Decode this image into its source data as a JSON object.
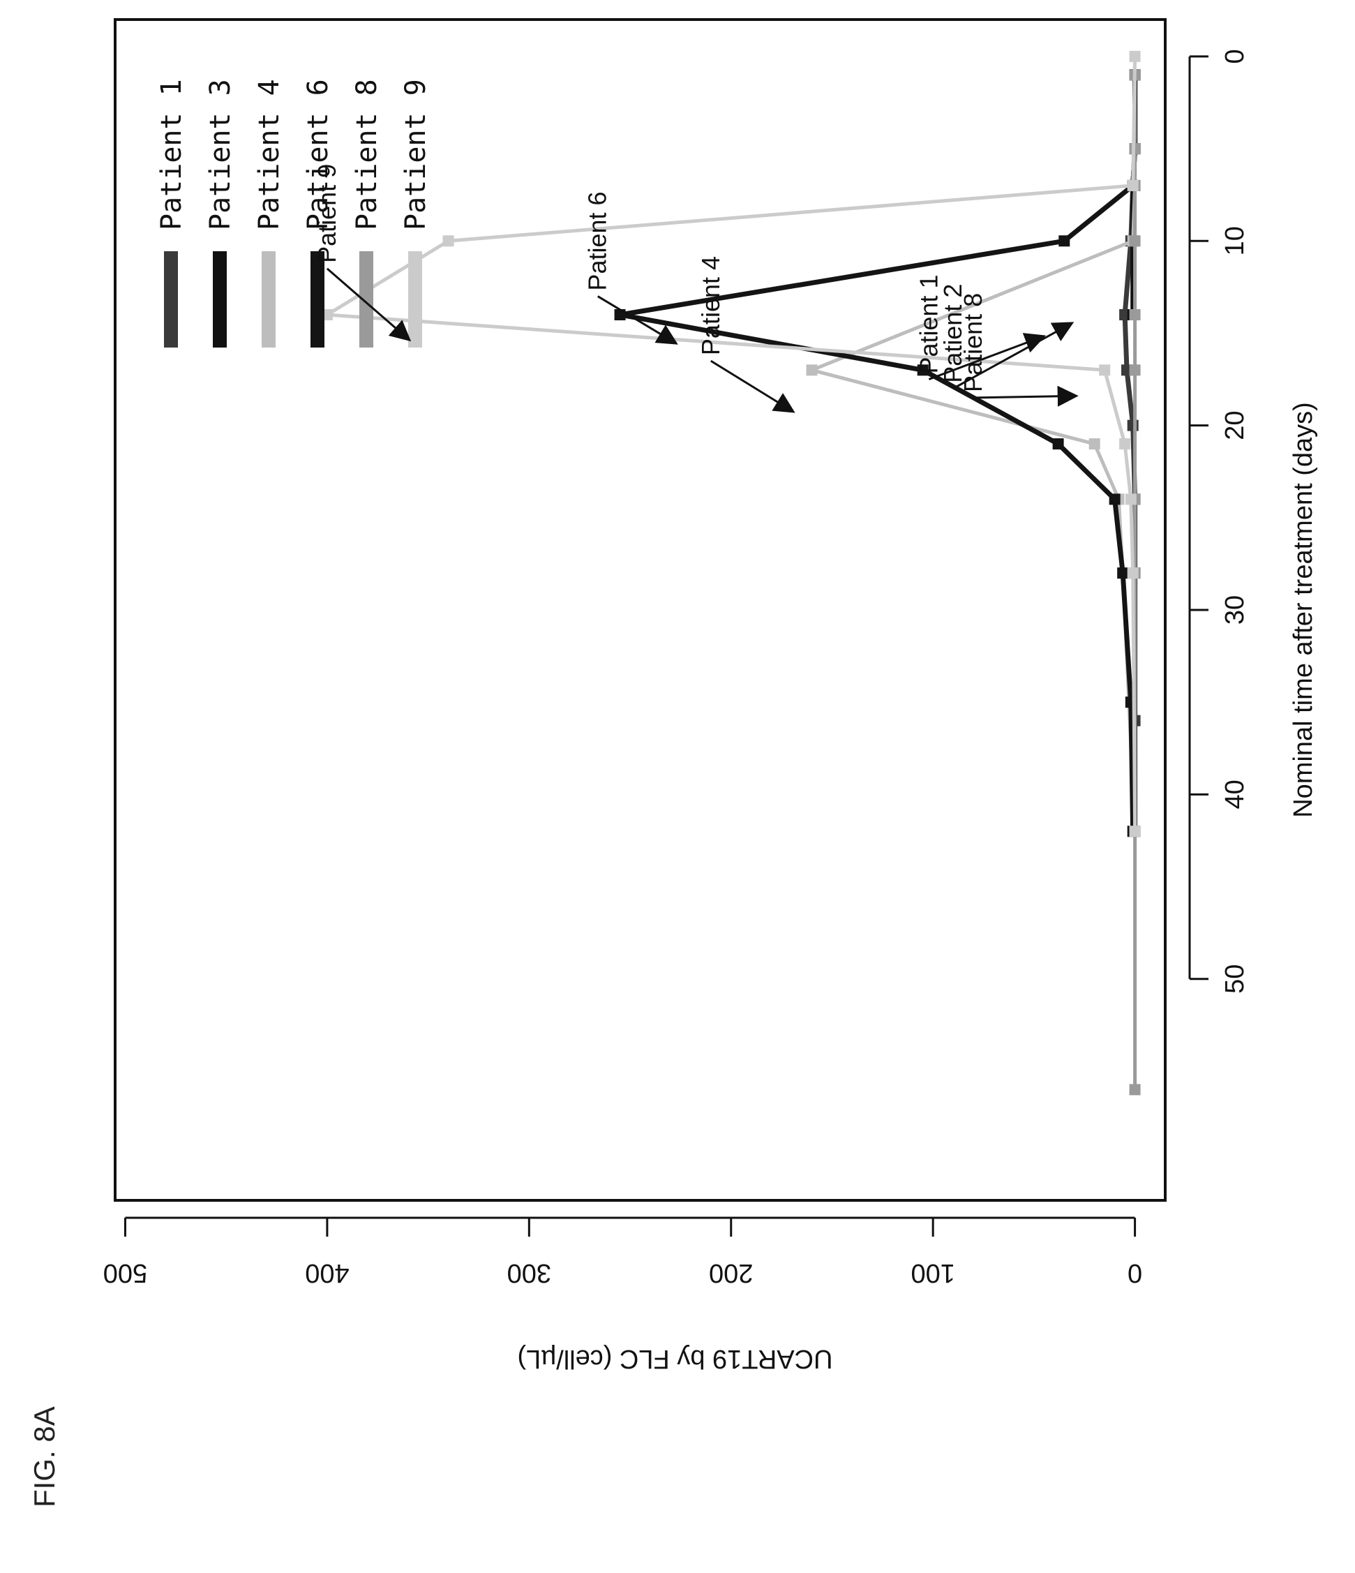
{
  "figure_label": "FIG. 8A",
  "chart_data": {
    "type": "line",
    "xlabel": "Nominal time after treatment (days)",
    "ylabel": "UCART19 by FLC (cell/µL)",
    "xlim": [
      -2,
      62
    ],
    "ylim": [
      -15,
      505
    ],
    "xticks": [
      0,
      10,
      20,
      30,
      40,
      50
    ],
    "yticks": [
      0,
      100,
      200,
      300,
      400,
      500
    ],
    "legend_position": "top-left",
    "series": [
      {
        "name": "Patient 1",
        "color": "#3a3a3a",
        "width": 7,
        "points": [
          [
            1,
            0
          ],
          [
            5,
            0
          ],
          [
            7,
            1
          ],
          [
            10,
            2
          ],
          [
            14,
            5
          ],
          [
            17,
            4
          ],
          [
            20,
            1
          ],
          [
            24,
            0
          ],
          [
            28,
            0
          ],
          [
            36,
            0
          ],
          [
            42,
            0
          ]
        ]
      },
      {
        "name": "Patient 3",
        "color": "#111111",
        "width": 7,
        "points": [
          [
            1,
            0
          ],
          [
            5,
            0
          ],
          [
            7,
            1
          ],
          [
            10,
            1
          ],
          [
            14,
            1
          ]
        ]
      },
      {
        "name": "Patient 4",
        "color": "#bdbdbd",
        "width": 5,
        "points": [
          [
            1,
            0
          ],
          [
            5,
            0
          ],
          [
            7,
            0
          ],
          [
            10,
            1
          ],
          [
            17,
            160
          ],
          [
            21,
            20
          ],
          [
            24,
            8
          ],
          [
            28,
            6
          ],
          [
            42,
            0
          ]
        ]
      },
      {
        "name": "Patient 6",
        "color": "#141414",
        "width": 7,
        "points": [
          [
            1,
            0
          ],
          [
            5,
            0
          ],
          [
            7,
            1
          ],
          [
            10,
            35
          ],
          [
            14,
            255
          ],
          [
            17,
            105
          ],
          [
            21,
            38
          ],
          [
            24,
            10
          ],
          [
            28,
            6
          ],
          [
            35,
            2
          ],
          [
            42,
            1
          ]
        ]
      },
      {
        "name": "Patient 8",
        "color": "#9a9a9a",
        "width": 5,
        "points": [
          [
            1,
            0
          ],
          [
            5,
            0
          ],
          [
            7,
            0
          ],
          [
            10,
            0
          ],
          [
            14,
            0
          ],
          [
            17,
            0
          ],
          [
            24,
            0
          ],
          [
            28,
            0
          ],
          [
            42,
            0
          ],
          [
            56,
            0
          ]
        ]
      },
      {
        "name": "Patient 9",
        "color": "#cbcbcb",
        "width": 5,
        "points": [
          [
            0,
            0
          ],
          [
            7,
            1
          ],
          [
            10,
            340
          ],
          [
            14,
            400
          ],
          [
            17,
            15
          ],
          [
            21,
            5
          ],
          [
            24,
            2
          ],
          [
            28,
            1
          ],
          [
            42,
            0
          ]
        ]
      }
    ],
    "annotations": [
      {
        "text": "Patient 9",
        "arrow_from": [
          11.5,
          400
        ],
        "arrow_to": [
          15.3,
          360
        ]
      },
      {
        "text": "Patient 6",
        "arrow_from": [
          13.0,
          266
        ],
        "arrow_to": [
          15.5,
          228
        ]
      },
      {
        "text": "Patient 4",
        "arrow_from": [
          16.5,
          210
        ],
        "arrow_to": [
          19.2,
          170
        ]
      },
      {
        "text": "Patient 1",
        "arrow_from": [
          17.5,
          102
        ],
        "arrow_to": [
          15.2,
          46
        ]
      },
      {
        "text": "Patient 2",
        "arrow_from": [
          18.0,
          90
        ],
        "arrow_to": [
          14.5,
          32
        ]
      },
      {
        "text": "Patient 8",
        "arrow_from": [
          18.5,
          80
        ],
        "arrow_to": [
          18.4,
          30
        ]
      }
    ]
  }
}
